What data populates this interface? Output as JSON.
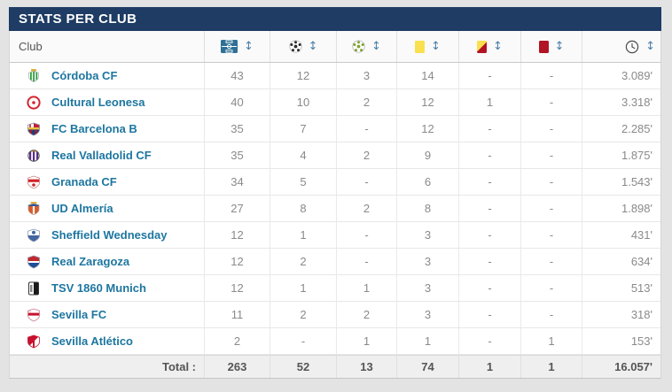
{
  "header": {
    "title": "STATS PER CLUB"
  },
  "colors": {
    "title_bg": "#1e3c64",
    "title_fg": "#ffffff",
    "club_link": "#1d76a0",
    "matches_val": "#5589b0",
    "val_gray": "#8a8a8a",
    "total_fg": "#555555",
    "sort_arrow": "#4b80a9",
    "yellow_card": "#f9e04e",
    "red_card": "#b11425"
  },
  "icons": {
    "sort": {
      "name": "sort-updown-icon",
      "glyph": "↕"
    },
    "columns": [
      "pitch-icon",
      "football-black-icon",
      "football-green-icon",
      "yellow-card-icon",
      "yellow-red-card-icon",
      "red-card-icon",
      "clock-icon"
    ]
  },
  "table": {
    "club_column_label": "Club",
    "rows": [
      {
        "club": "Córdoba CF",
        "crest": "cordoba-cf",
        "values": [
          "43",
          "12",
          "3",
          "14",
          "-",
          "-",
          "3.089'"
        ]
      },
      {
        "club": "Cultural Leonesa",
        "crest": "cultural-leonesa",
        "values": [
          "40",
          "10",
          "2",
          "12",
          "1",
          "-",
          "3.318'"
        ]
      },
      {
        "club": "FC Barcelona B",
        "crest": "fc-barcelona-b",
        "values": [
          "35",
          "7",
          "-",
          "12",
          "-",
          "-",
          "2.285'"
        ]
      },
      {
        "club": "Real Valladolid CF",
        "crest": "real-valladolid",
        "values": [
          "35",
          "4",
          "2",
          "9",
          "-",
          "-",
          "1.875'"
        ]
      },
      {
        "club": "Granada CF",
        "crest": "granada-cf",
        "values": [
          "34",
          "5",
          "-",
          "6",
          "-",
          "-",
          "1.543'"
        ]
      },
      {
        "club": "UD Almería",
        "crest": "ud-almeria",
        "values": [
          "27",
          "8",
          "2",
          "8",
          "-",
          "-",
          "1.898'"
        ]
      },
      {
        "club": "Sheffield Wednesday",
        "crest": "sheffield-wed",
        "values": [
          "12",
          "1",
          "-",
          "3",
          "-",
          "-",
          "431'"
        ]
      },
      {
        "club": "Real Zaragoza",
        "crest": "real-zaragoza",
        "values": [
          "12",
          "2",
          "-",
          "3",
          "-",
          "-",
          "634'"
        ]
      },
      {
        "club": "TSV 1860 Munich",
        "crest": "tsv-1860",
        "values": [
          "12",
          "1",
          "1",
          "3",
          "-",
          "-",
          "513'"
        ]
      },
      {
        "club": "Sevilla FC",
        "crest": "sevilla-fc",
        "values": [
          "11",
          "2",
          "2",
          "3",
          "-",
          "-",
          "318'"
        ]
      },
      {
        "club": "Sevilla Atlético",
        "crest": "sevilla-atletico",
        "values": [
          "2",
          "-",
          "1",
          "1",
          "-",
          "1",
          "153'"
        ]
      }
    ],
    "total": {
      "label": "Total :",
      "values": [
        "263",
        "52",
        "13",
        "74",
        "1",
        "1",
        "16.057'"
      ]
    }
  }
}
